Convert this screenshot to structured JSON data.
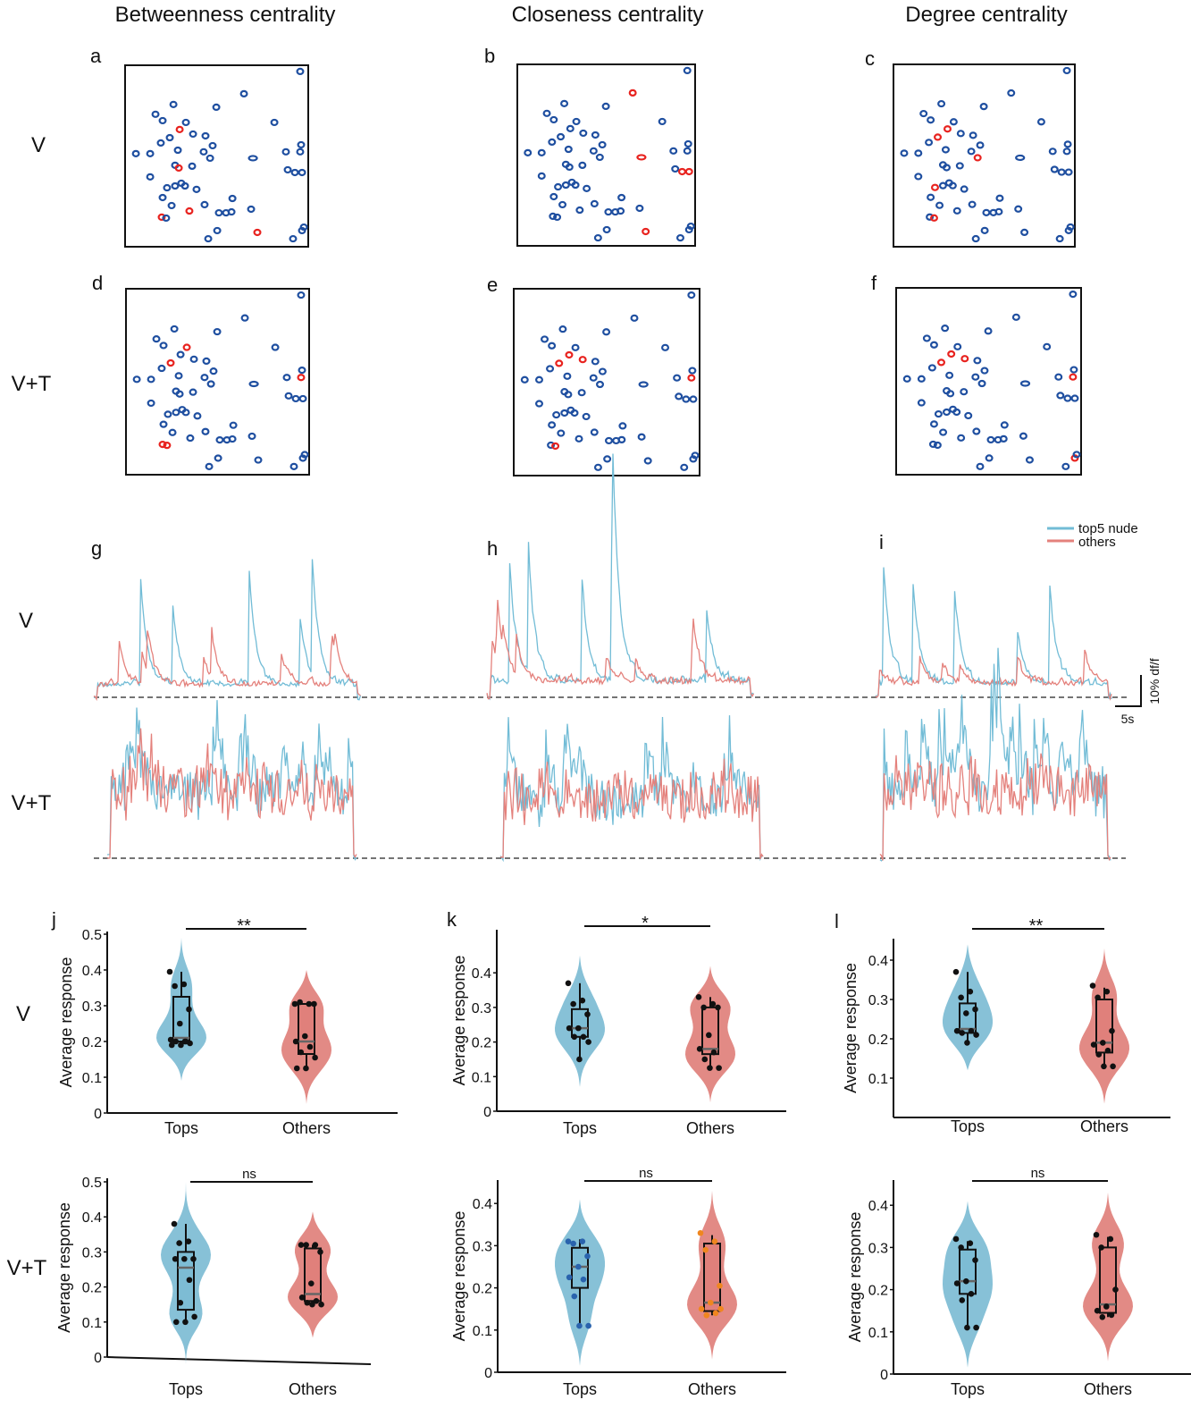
{
  "column_titles": [
    "Betweenness centrality",
    "Closeness centrality",
    "Degree centrality"
  ],
  "row_labels": {
    "maps": [
      "V",
      "V+T"
    ],
    "traces": [
      "V",
      "V+T"
    ],
    "violins": [
      "V",
      "V+T"
    ]
  },
  "panel_letters": [
    "a",
    "b",
    "c",
    "d",
    "e",
    "f",
    "g",
    "h",
    "i",
    "j",
    "k",
    "l"
  ],
  "colors": {
    "neuron": "#1f4fa0",
    "top_neuron": "#e8231f",
    "top5": "#72bcd6",
    "others": "#e4817c",
    "top_violin": "#7dbcd4",
    "other_violin": "#e0807b",
    "k2_top_dots": "#2a63ad",
    "k2_other_dots": "#f0861f"
  },
  "legend": {
    "top5": "top5 nude",
    "others": "others"
  },
  "scale_bar": {
    "time": "5s",
    "amplitude": "10% df/f"
  },
  "chart_data": [
    {
      "type": "scatter",
      "description_role": "neuron maps a-f",
      "units": "percent of field of view",
      "neurons": [
        [
          95.6,
          96.6
        ],
        [
          64.9,
          84.3
        ],
        [
          26.4,
          78.4
        ],
        [
          16.6,
          73
        ],
        [
          20.5,
          69.5
        ],
        [
          33.2,
          68.5
        ],
        [
          81.5,
          68.5
        ],
        [
          29.8,
          64.6
        ],
        [
          5.9,
          51.3
        ],
        [
          19.5,
          57.2
        ],
        [
          24.4,
          60.1
        ],
        [
          37.1,
          62.1
        ],
        [
          43.9,
          61.1
        ],
        [
          47.8,
          55.7
        ],
        [
          42.9,
          52.3
        ],
        [
          13.7,
          51.3
        ],
        [
          28.8,
          53.2
        ],
        [
          49.8,
          76.9
        ],
        [
          96.1,
          56.2
        ],
        [
          87.8,
          52.3
        ],
        [
          95.6,
          52.3
        ],
        [
          69.8,
          48.8
        ],
        [
          46.4,
          48.8
        ],
        [
          27.3,
          44.9
        ],
        [
          29.3,
          43.4
        ],
        [
          36.6,
          44.4
        ],
        [
          13.7,
          38.5
        ],
        [
          88.8,
          42.4
        ],
        [
          92.7,
          40.9
        ],
        [
          96.6,
          40.9
        ],
        [
          27.3,
          33.5
        ],
        [
          30.7,
          35
        ],
        [
          32.7,
          33.5
        ],
        [
          22.9,
          32.5
        ],
        [
          39,
          31.6
        ],
        [
          20.5,
          27.1
        ],
        [
          25.4,
          22.7
        ],
        [
          35.1,
          19.7
        ],
        [
          43.4,
          23.2
        ],
        [
          58.6,
          26.6
        ],
        [
          51.2,
          18.7
        ],
        [
          55.1,
          18.7
        ],
        [
          58.1,
          19.2
        ],
        [
          68.8,
          20.7
        ],
        [
          20,
          16.3
        ],
        [
          22.4,
          15.8
        ],
        [
          72.2,
          7.9
        ],
        [
          50.3,
          8.9
        ],
        [
          45.4,
          4.4
        ],
        [
          91.7,
          4.4
        ],
        [
          96.6,
          8.9
        ],
        [
          97.6,
          10.8
        ]
      ],
      "panels": [
        {
          "letter": "a",
          "condition": "V",
          "measure": "Betweenness centrality",
          "top5_indices": [
            7,
            24,
            37,
            44,
            46
          ]
        },
        {
          "letter": "b",
          "condition": "V",
          "measure": "Closeness centrality",
          "top5_indices": [
            1,
            21,
            28,
            29,
            46
          ]
        },
        {
          "letter": "c",
          "condition": "V",
          "measure": "Degree centrality",
          "top5_indices": [
            7,
            10,
            22,
            33,
            45
          ]
        },
        {
          "letter": "d",
          "condition": "V+T",
          "measure": "Betweenness centrality",
          "top5_indices": [
            5,
            10,
            20,
            44,
            45
          ]
        },
        {
          "letter": "e",
          "condition": "V+T",
          "measure": "Closeness centrality",
          "top5_indices": [
            7,
            10,
            11,
            20,
            45
          ]
        },
        {
          "letter": "f",
          "condition": "V+T",
          "measure": "Degree centrality",
          "top5_indices": [
            7,
            10,
            11,
            20,
            50
          ]
        }
      ]
    },
    {
      "type": "line",
      "description_role": "calcium traces g-i",
      "series": [
        {
          "name": "top5 nude"
        },
        {
          "name": "others"
        }
      ],
      "panels": [
        "g",
        "h",
        "i"
      ],
      "conditions": [
        "V",
        "V+T"
      ]
    },
    {
      "type": "violin",
      "ylabel": "Average response",
      "categories": [
        "Tops",
        "Others"
      ],
      "panels": [
        {
          "letter": "j",
          "condition": "V",
          "ylim": [
            0,
            0.5
          ],
          "yticks": [
            "0",
            "0.1",
            "0.2",
            "0.3",
            "0.4",
            "0.5"
          ],
          "significance": "**",
          "groups": [
            {
              "points": [
                0.395,
                0.36,
                0.355,
                0.29,
                0.25,
                0.205,
                0.2,
                0.2,
                0.195,
                0.19,
                0.19,
                0.2
              ],
              "q1": 0.2,
              "median": 0.21,
              "q3": 0.325,
              "whisker": [
                0.2,
                0.395
              ],
              "range": [
                0.09,
                0.49
              ]
            },
            {
              "points": [
                0.305,
                0.305,
                0.31,
                0.305,
                0.215,
                0.2,
                0.185,
                0.17,
                0.155,
                0.125,
                0.125
              ],
              "q1": 0.165,
              "median": 0.2,
              "q3": 0.305,
              "whisker": [
                0.125,
                0.305
              ],
              "range": [
                0.025,
                0.4
              ]
            }
          ]
        },
        {
          "letter": "k",
          "condition": "V",
          "ylim": [
            0,
            0.45
          ],
          "yticks": [
            "0",
            "0.1",
            "0.2",
            "0.3",
            "0.4"
          ],
          "significance": "*",
          "groups": [
            {
              "points": [
                0.37,
                0.32,
                0.31,
                0.28,
                0.24,
                0.24,
                0.215,
                0.215,
                0.2,
                0.15
              ],
              "q1": 0.215,
              "median": 0.24,
              "q3": 0.295,
              "whisker": [
                0.15,
                0.37
              ],
              "range": [
                0.07,
                0.45
              ]
            },
            {
              "points": [
                0.33,
                0.31,
                0.3,
                0.3,
                0.22,
                0.18,
                0.17,
                0.15,
                0.125,
                0.125
              ],
              "q1": 0.165,
              "median": 0.18,
              "q3": 0.3,
              "whisker": [
                0.125,
                0.33
              ],
              "range": [
                0.025,
                0.42
              ]
            }
          ]
        },
        {
          "letter": "l",
          "condition": "V",
          "ylim": [
            0,
            0.45
          ],
          "yticks": [
            "0.1",
            "0.2",
            "0.3",
            "0.4"
          ],
          "significance": "**",
          "groups": [
            {
              "points": [
                0.37,
                0.32,
                0.305,
                0.275,
                0.265,
                0.22,
                0.22,
                0.215,
                0.21,
                0.19
              ],
              "q1": 0.215,
              "median": 0.225,
              "q3": 0.29,
              "whisker": [
                0.19,
                0.37
              ],
              "range": [
                0.12,
                0.44
              ]
            },
            {
              "points": [
                0.335,
                0.32,
                0.305,
                0.22,
                0.19,
                0.185,
                0.17,
                0.16,
                0.13,
                0.13
              ],
              "q1": 0.165,
              "median": 0.19,
              "q3": 0.3,
              "whisker": [
                0.13,
                0.33
              ],
              "range": [
                0.035,
                0.43
              ]
            }
          ]
        },
        {
          "letter": "j2",
          "condition": "V+T",
          "ylim": [
            0,
            0.5
          ],
          "yticks": [
            "0",
            "0.1",
            "0.2",
            "0.3",
            "0.4",
            "0.5"
          ],
          "significance": "ns",
          "groups": [
            {
              "points": [
                0.38,
                0.33,
                0.325,
                0.28,
                0.28,
                0.28,
                0.22,
                0.155,
                0.115,
                0.1,
                0.1
              ],
              "q1": 0.135,
              "median": 0.255,
              "q3": 0.3,
              "whisker": [
                0.1,
                0.38
              ],
              "range": [
                -0.02,
                0.5
              ]
            },
            {
              "points": [
                0.32,
                0.32,
                0.32,
                0.3,
                0.21,
                0.17,
                0.16,
                0.155,
                0.15,
                0.15
              ],
              "q1": 0.16,
              "median": 0.18,
              "q3": 0.31,
              "whisker": [
                0.155,
                0.32
              ],
              "range": [
                0.055,
                0.415
              ]
            }
          ]
        },
        {
          "letter": "k2",
          "condition": "V+T",
          "ylim": [
            0,
            0.45
          ],
          "yticks": [
            "0",
            "0.1",
            "0.2",
            "0.3",
            "0.4"
          ],
          "significance": "ns",
          "groups": [
            {
              "points": [
                0.31,
                0.31,
                0.305,
                0.275,
                0.25,
                0.225,
                0.22,
                0.18,
                0.11,
                0.11
              ],
              "q1": 0.2,
              "median": 0.25,
              "q3": 0.295,
              "whisker": [
                0.11,
                0.315
              ],
              "range": [
                0.015,
                0.41
              ]
            },
            {
              "points": [
                0.33,
                0.31,
                0.29,
                0.205,
                0.165,
                0.15,
                0.14,
                0.135,
                0.15
              ],
              "q1": 0.145,
              "median": 0.165,
              "q3": 0.305,
              "whisker": [
                0.135,
                0.325
              ],
              "range": [
                0.03,
                0.43
              ]
            }
          ]
        },
        {
          "letter": "l2",
          "condition": "V+T",
          "ylim": [
            0,
            0.45
          ],
          "yticks": [
            "0",
            "0.1",
            "0.2",
            "0.3",
            "0.4"
          ],
          "significance": "ns",
          "groups": [
            {
              "points": [
                0.32,
                0.31,
                0.3,
                0.27,
                0.22,
                0.215,
                0.19,
                0.175,
                0.11,
                0.11
              ],
              "q1": 0.19,
              "median": 0.22,
              "q3": 0.295,
              "whisker": [
                0.11,
                0.315
              ],
              "range": [
                0.015,
                0.41
              ]
            },
            {
              "points": [
                0.33,
                0.32,
                0.3,
                0.2,
                0.16,
                0.15,
                0.14,
                0.135
              ],
              "q1": 0.145,
              "median": 0.165,
              "q3": 0.3,
              "whisker": [
                0.135,
                0.325
              ],
              "range": [
                0.03,
                0.43
              ]
            }
          ]
        }
      ]
    }
  ]
}
